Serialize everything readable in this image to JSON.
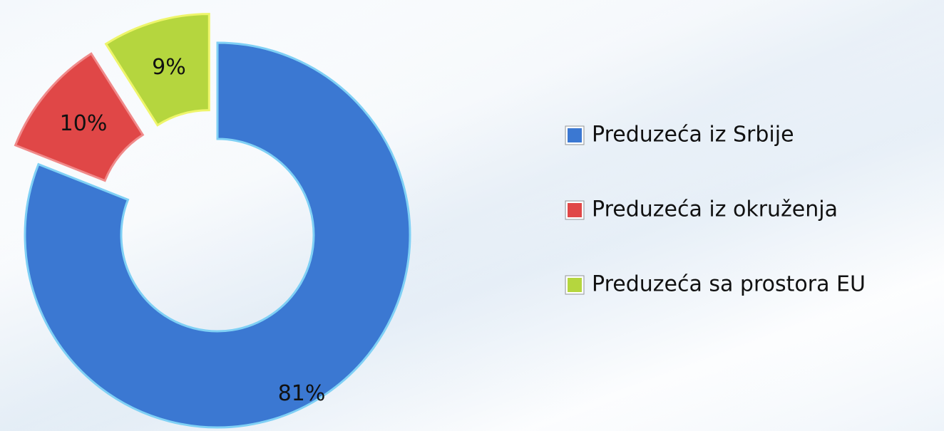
{
  "chart_data": {
    "type": "donut",
    "categories": [
      "Preduzeća iz Srbije",
      "Preduzeća iz okruženja",
      "Preduzeća sa prostora EU"
    ],
    "values": [
      81,
      10,
      9
    ],
    "value_labels": [
      "81%",
      "10%",
      "9%"
    ],
    "colors": [
      "#3b78d2",
      "#e04747",
      "#b5d63e"
    ],
    "legend": "right"
  }
}
